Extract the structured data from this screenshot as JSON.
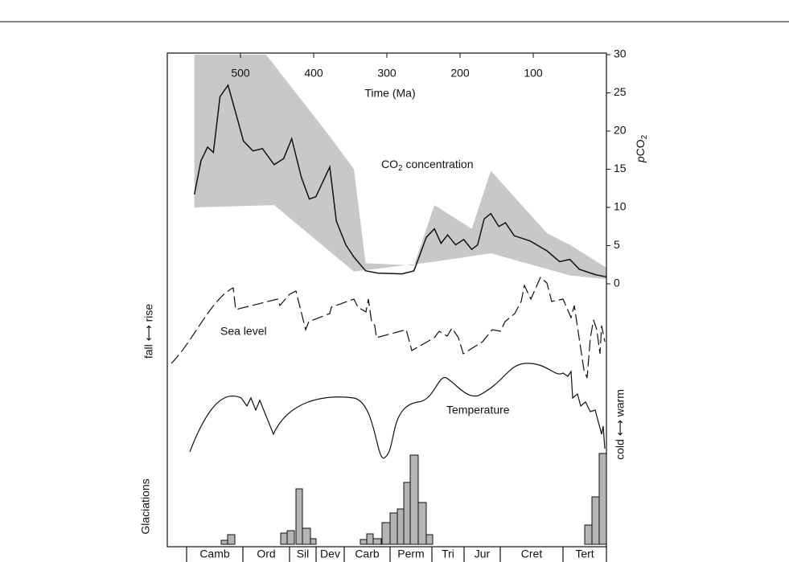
{
  "chart_data": {
    "type": "line",
    "xlabel": "Time (Ma)",
    "ylabel": {
      "italic": "p",
      "base": "CO",
      "sub": "2"
    },
    "xlim": [
      600,
      0
    ],
    "xticks": [
      500,
      400,
      300,
      200,
      100
    ],
    "ylim": [
      0,
      30
    ],
    "yticks": [
      0,
      5,
      10,
      15,
      20,
      25,
      30
    ],
    "series": [
      {
        "color": "#111111",
        "x": [
          563,
          554,
          545,
          537,
          528,
          517,
          508,
          496,
          483,
          470,
          454,
          441,
          430,
          417,
          406,
          397,
          378,
          369,
          356,
          345,
          329,
          312,
          279,
          263,
          246,
          235,
          226,
          217,
          206,
          195,
          184,
          176,
          167,
          158,
          147,
          138,
          126,
          104,
          81,
          64,
          50,
          37,
          15,
          0
        ],
        "values": [
          11.7,
          16.1,
          17.9,
          17.2,
          24.5,
          26,
          22.9,
          18.7,
          17.4,
          17.7,
          15.6,
          16.4,
          19,
          14,
          11.1,
          11.4,
          15.3,
          8.2,
          5.1,
          3.5,
          1.7,
          1.4,
          1.3,
          1.7,
          6.1,
          7.2,
          5.3,
          6.4,
          5.1,
          5.8,
          4.5,
          5.1,
          8.5,
          9.2,
          7.5,
          8.0,
          6.3,
          5.6,
          4.3,
          2.9,
          3.2,
          1.9,
          1.2,
          0.9
        ]
      }
    ],
    "band": {
      "color": "#c8c8c8",
      "x_upper": [
        563,
        465,
        378,
        345,
        329,
        263,
        235,
        184,
        158,
        81,
        50,
        0
      ],
      "upper": [
        30,
        30,
        19.3,
        15,
        2.7,
        2.4,
        10.3,
        7.2,
        14.8,
        6.6,
        5.1,
        2.1
      ],
      "x_lower": [
        0,
        50,
        158,
        235,
        345,
        454,
        563
      ],
      "lower": [
        0.6,
        1.1,
        4,
        2.9,
        1.6,
        10.3,
        10
      ]
    },
    "annotations": {
      "co2": {
        "base": "CO",
        "sub": "2",
        "rest": " concentration"
      },
      "sea_level": "Sea level",
      "temperature": "Temperature",
      "fall_rise": "fall ⟷ rise",
      "cold_warm": "cold ⟷ warm",
      "glaciations": "Glaciations"
    },
    "periods": [
      "Camb",
      "Ord",
      "Sil",
      "Dev",
      "Carb",
      "Perm",
      "Tri",
      "Jur",
      "Cret",
      "Tert"
    ]
  }
}
